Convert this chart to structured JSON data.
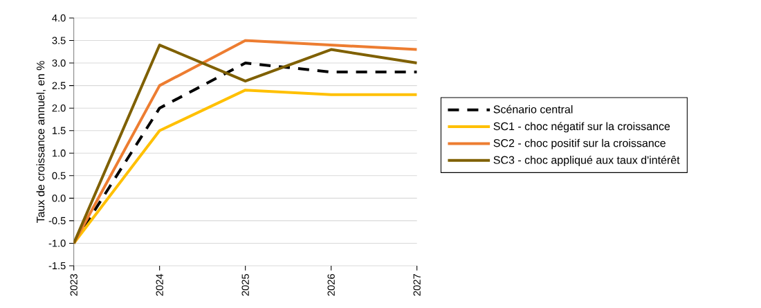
{
  "chart_data": {
    "type": "line",
    "ylabel": "Taux de croissance annuel, en %",
    "categories": [
      "2023",
      "2024",
      "2025",
      "2026",
      "2027"
    ],
    "series": [
      {
        "name": "Scénario central",
        "color": "#000000",
        "line_style": "dashed",
        "values": [
          -1.0,
          2.0,
          3.0,
          2.8,
          2.8
        ]
      },
      {
        "name": "SC1 - choc négatif sur la croissance",
        "color": "#ffc000",
        "values": [
          -1.0,
          1.5,
          2.4,
          2.3,
          2.3
        ]
      },
      {
        "name": "SC2 - choc positif sur la croissance",
        "color": "#ed7d31",
        "values": [
          -1.0,
          2.5,
          3.5,
          3.4,
          3.3
        ]
      },
      {
        "name": "SC3 - choc appliqué aux taux d'intérêt",
        "color": "#7f6000",
        "values": [
          -1.0,
          3.4,
          2.6,
          3.3,
          3.0
        ]
      }
    ],
    "ylim": [
      -1.5,
      4.0
    ],
    "yticks": [
      {
        "value": -1.5,
        "label": "-1.5"
      },
      {
        "value": -1.0,
        "label": "-1.0"
      },
      {
        "value": -0.5,
        "label": "-0.5"
      },
      {
        "value": 0,
        "label": "0.0"
      },
      {
        "value": 0.5,
        "label": "0.5"
      },
      {
        "value": 1.0,
        "label": "1.0"
      },
      {
        "value": 1.5,
        "label": "1.5"
      },
      {
        "value": 2.0,
        "label": "2.0"
      },
      {
        "value": 2.5,
        "label": "2.5"
      },
      {
        "value": 3.0,
        "label": "3.0"
      },
      {
        "value": 3.5,
        "label": "3.5"
      },
      {
        "value": 4.0,
        "label": "4.0"
      }
    ],
    "grid": "y",
    "legend": "right",
    "marker": "none"
  }
}
